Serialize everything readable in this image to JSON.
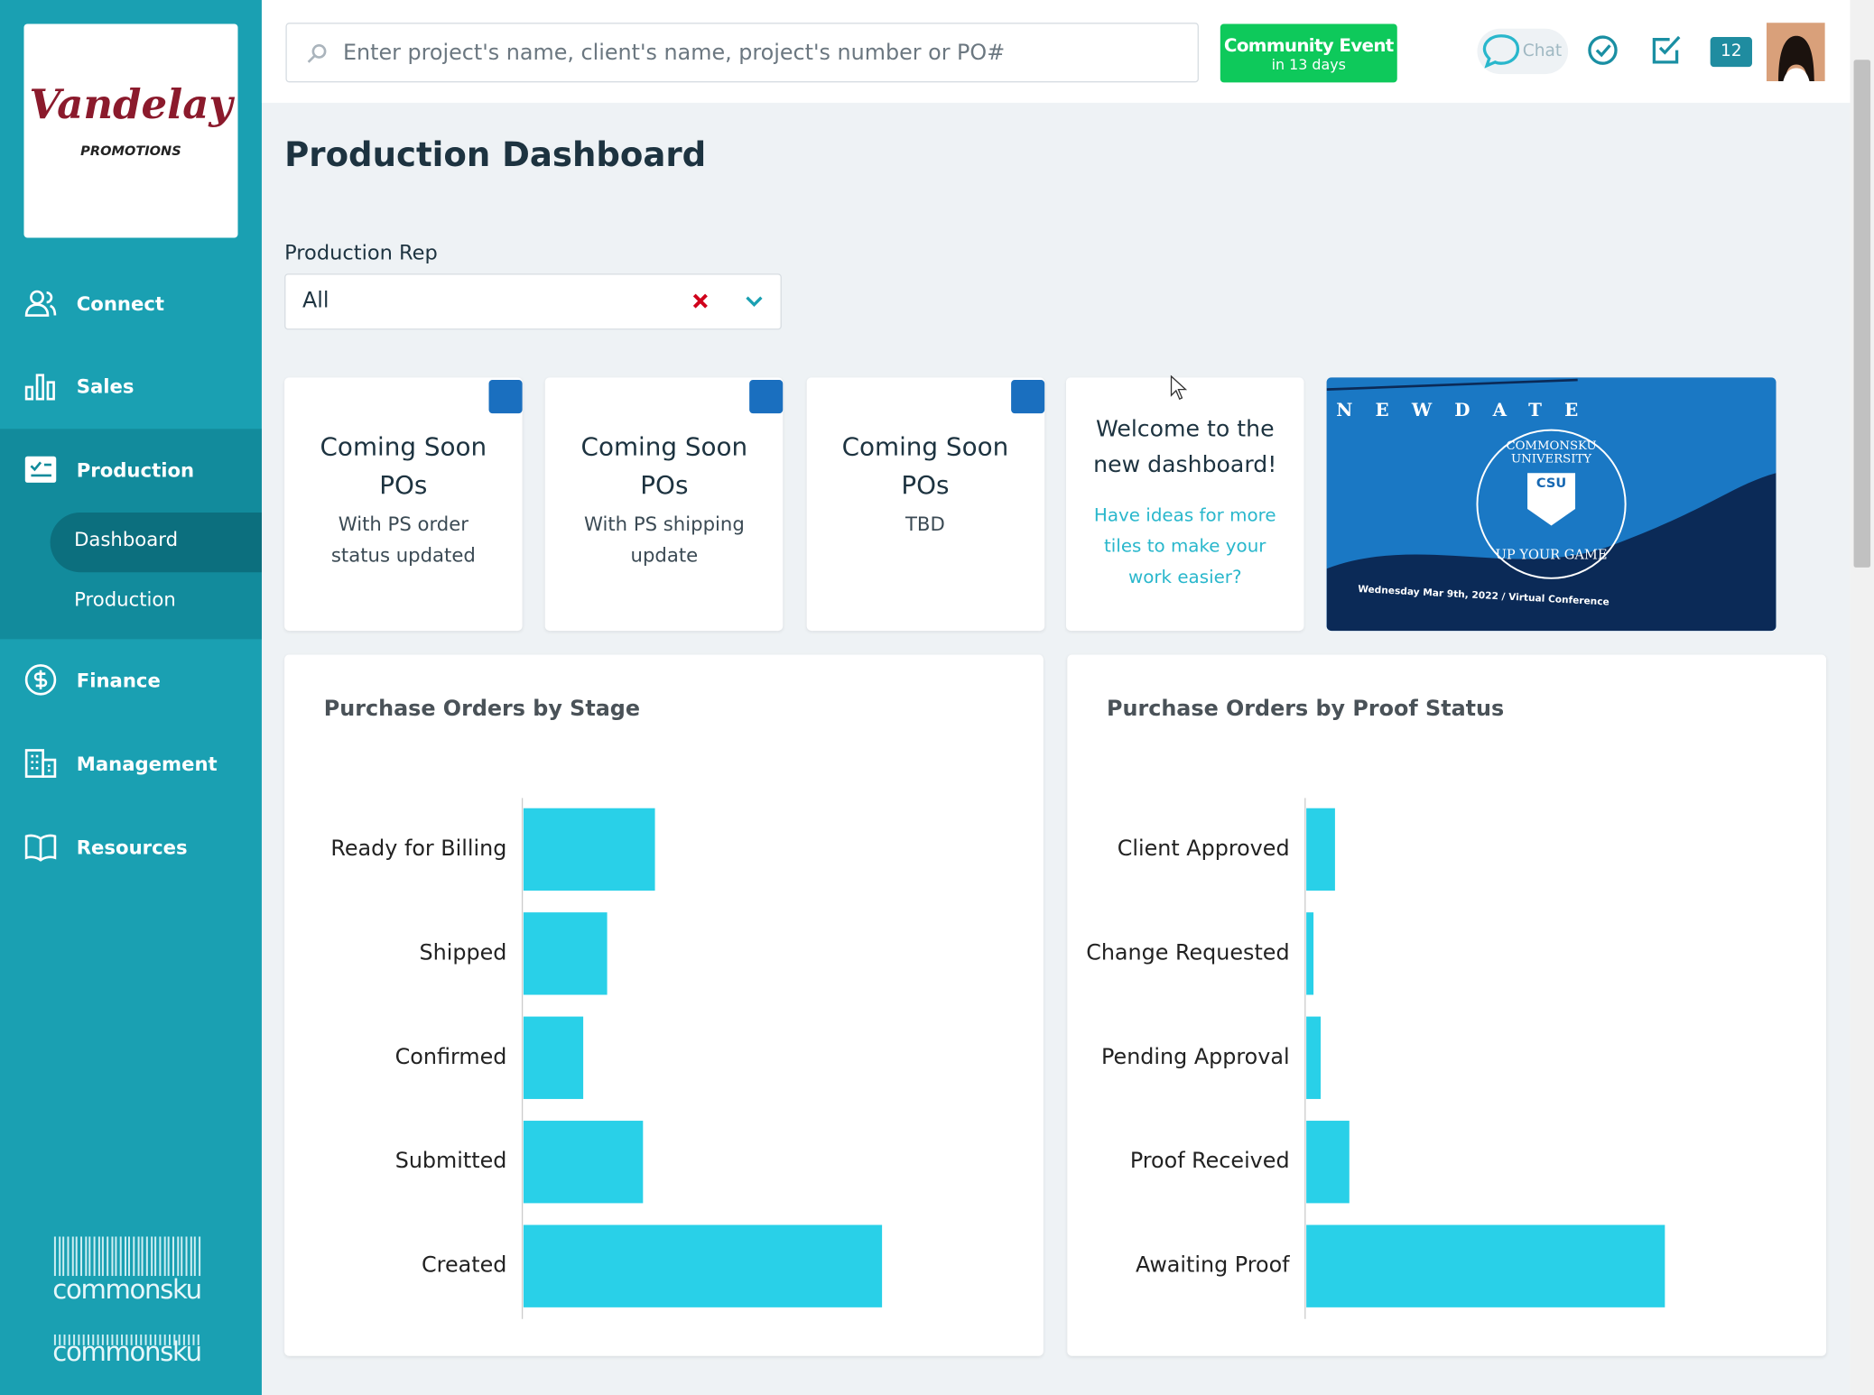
{
  "logo": {
    "name": "Vandelay",
    "sub": "PROMOTIONS"
  },
  "search_placeholder": "Enter project's name, client's name, project's number or PO#",
  "event": {
    "title": "Community Event",
    "subtitle": "in 13 days"
  },
  "chat": "Chat",
  "badge": "12",
  "nav": [
    "Connect",
    "Sales",
    "Production",
    "Finance",
    "Management",
    "Resources"
  ],
  "subnav": [
    "Dashboard",
    "Production"
  ],
  "footer_brand": "commonsku",
  "page_title": "Production Dashboard",
  "filter": {
    "label": "Production Rep",
    "value": "All"
  },
  "tiles": [
    {
      "title": "Coming Soon",
      "subtitle": "POs",
      "text": "With PS order status updated"
    },
    {
      "title": "Coming Soon",
      "subtitle": "POs",
      "text": "With PS shipping update"
    },
    {
      "title": "Coming Soon",
      "subtitle": "POs",
      "text": "TBD"
    }
  ],
  "welcome": {
    "title": "Welcome to the new dashboard!",
    "text": "Have ideas for more tiles to make your work easier?"
  },
  "banner": {
    "flags": "NEWDATE",
    "name": "COMMONSKU UNIVERSITY",
    "badge": "CSU",
    "tagline": "UP YOUR GAME",
    "date": "Wednesday Mar 9th, 2022 / Virtual Conference"
  },
  "chart_data": [
    {
      "type": "bar",
      "orientation": "horizontal",
      "title": "Purchase Orders by Stage",
      "color": "#29d0e8",
      "categories": [
        "Ready for Billing",
        "Shipped",
        "Confirmed",
        "Submitted",
        "Created"
      ],
      "values": [
        11,
        7,
        5,
        10,
        30
      ]
    },
    {
      "type": "bar",
      "orientation": "horizontal",
      "title": "Purchase Orders by Proof Status",
      "color": "#29d0e8",
      "categories": [
        "Client Approved",
        "Change Requested",
        "Pending Approval",
        "Proof Received",
        "Awaiting Proof"
      ],
      "values": [
        4,
        1,
        2,
        6,
        50
      ]
    }
  ]
}
